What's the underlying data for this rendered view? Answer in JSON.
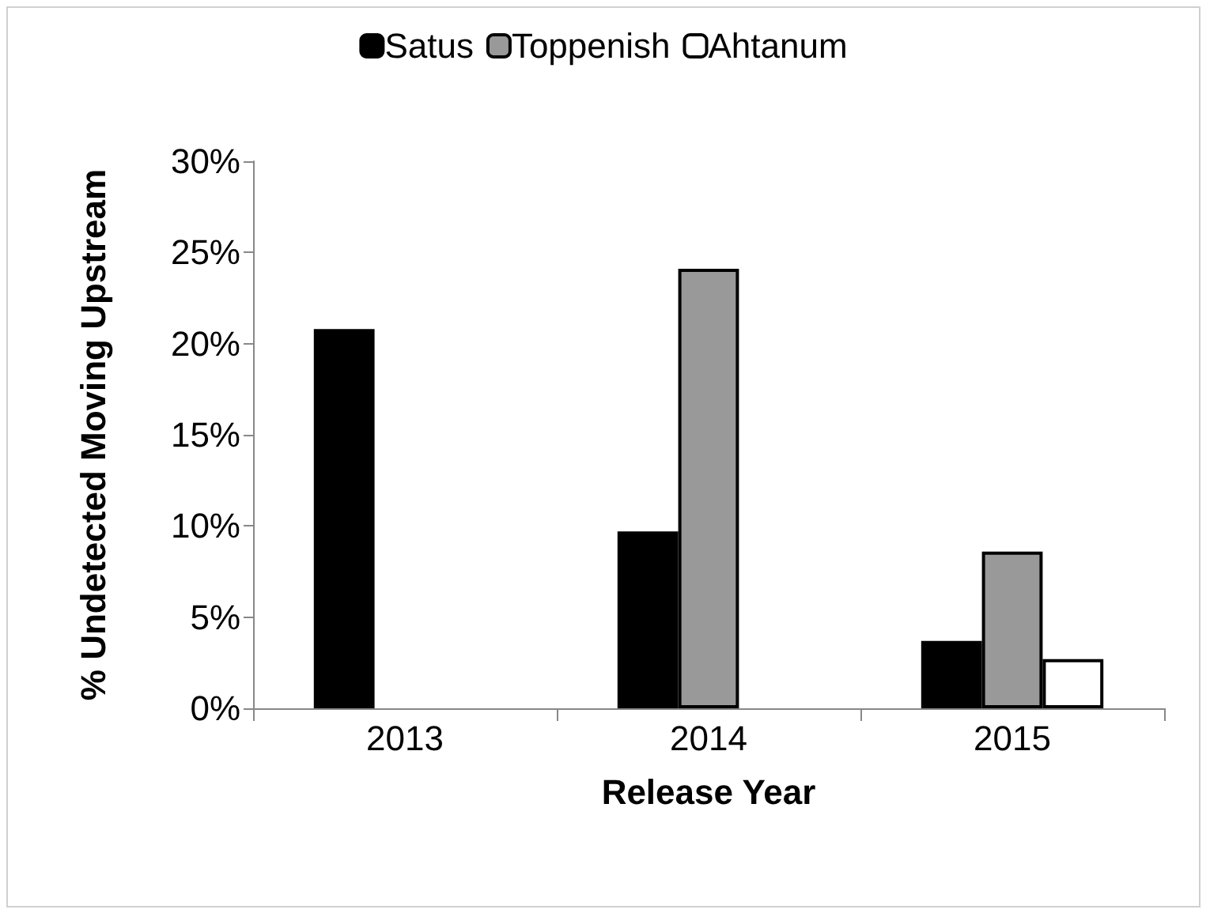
{
  "chart_data": {
    "type": "bar",
    "xlabel": "Release Year",
    "ylabel": "% Undetected Moving Upstream",
    "categories": [
      "2013",
      "2014",
      "2015"
    ],
    "series": [
      {
        "name": "Satus",
        "color": "#000000",
        "values": [
          20.8,
          9.7,
          3.7
        ]
      },
      {
        "name": "Toppenish",
        "color": "#999999",
        "values": [
          null,
          24.1,
          8.6
        ]
      },
      {
        "name": "Ahtanum",
        "color": "#ffffff",
        "values": [
          null,
          null,
          2.7
        ]
      }
    ],
    "ylim": [
      0,
      30
    ],
    "yticks": [
      {
        "value": 0,
        "label": "0%"
      },
      {
        "value": 5,
        "label": "5%"
      },
      {
        "value": 10,
        "label": "10%"
      },
      {
        "value": 15,
        "label": "15%"
      },
      {
        "value": 20,
        "label": "20%"
      },
      {
        "value": 25,
        "label": "25%"
      },
      {
        "value": 30,
        "label": "30%"
      }
    ],
    "grid": false,
    "legend": "top"
  }
}
